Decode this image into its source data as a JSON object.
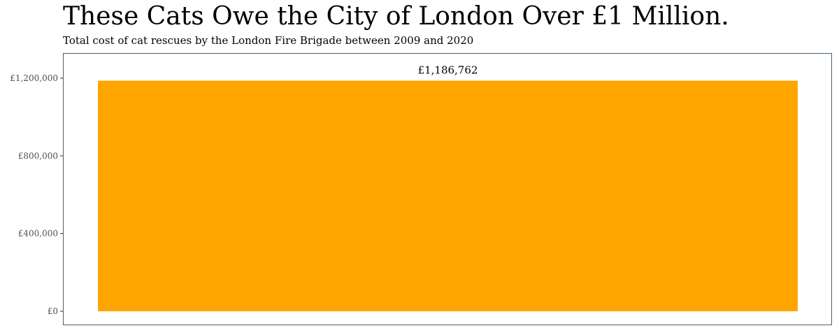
{
  "chart_data": {
    "type": "bar",
    "title": "These Cats Owe the City of London Over £1 Million.",
    "subtitle": "Total cost of cat rescues by the London Fire Brigade between 2009 and 2020",
    "categories": [
      ""
    ],
    "values": [
      1186762
    ],
    "data_labels": [
      "£1,186,762"
    ],
    "xlabel": "",
    "ylabel": "",
    "ylim": [
      0,
      1250000
    ],
    "yticks": [
      0,
      400000,
      800000,
      1200000
    ],
    "ytick_labels": [
      "£0",
      "£400,000",
      "£800,000",
      "£1,200,000"
    ],
    "grid": false,
    "legend": "none",
    "colors": {
      "bar": "#FFA500",
      "panel_border": "#4a6070",
      "axis_text": "#4d4d4d"
    }
  }
}
